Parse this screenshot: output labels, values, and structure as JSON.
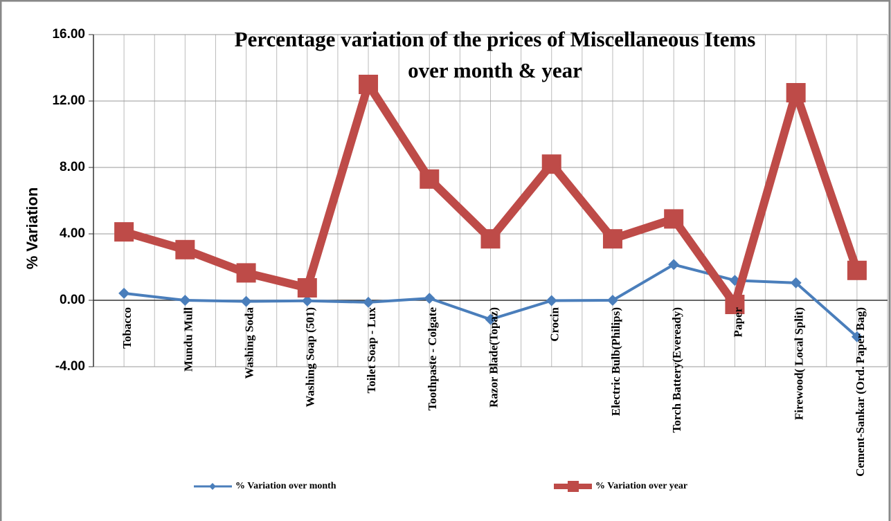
{
  "chart_data": {
    "type": "line",
    "title": "Percentage variation of the prices of Miscellaneous Items",
    "subtitle": "over month & year",
    "y_label": "% Variation",
    "categories": [
      "Tobacco",
      "Mundu Mull",
      "Washing Soda",
      "Washing Soap (501)",
      "Toilet Soap - Lux",
      "Toothpaste - Colgate",
      "Razor Blade(Topaz)",
      "Crocin",
      "Electric Bulb(Philips)",
      "Torch Battery(Eveready)",
      "Paper",
      "Firewood( Local Split)",
      "Cement-Sankar (Ord. Paper Bag)"
    ],
    "series": [
      {
        "name": "%  Variation over month",
        "color": "#4a7ebb",
        "values": [
          0.42,
          0,
          -0.07,
          -0.03,
          -0.12,
          0.12,
          -1.15,
          -0.02,
          0,
          2.15,
          1.2,
          1.05,
          -2.2
        ]
      },
      {
        "name": "%  Variation over year",
        "color": "#be4b48",
        "values": [
          4.12,
          3.05,
          1.65,
          0.75,
          13.0,
          7.3,
          3.7,
          8.2,
          3.7,
          4.9,
          -0.25,
          12.5,
          1.8
        ]
      }
    ],
    "ylim": [
      -4,
      16
    ],
    "yticks": [
      {
        "value": -4,
        "label": "-4.00"
      },
      {
        "value": 0,
        "label": "0.00"
      },
      {
        "value": 4,
        "label": "4.00"
      },
      {
        "value": 8,
        "label": "8.00"
      },
      {
        "value": 12,
        "label": "12.00"
      },
      {
        "value": 16,
        "label": "16.00"
      }
    ],
    "grid": true
  }
}
